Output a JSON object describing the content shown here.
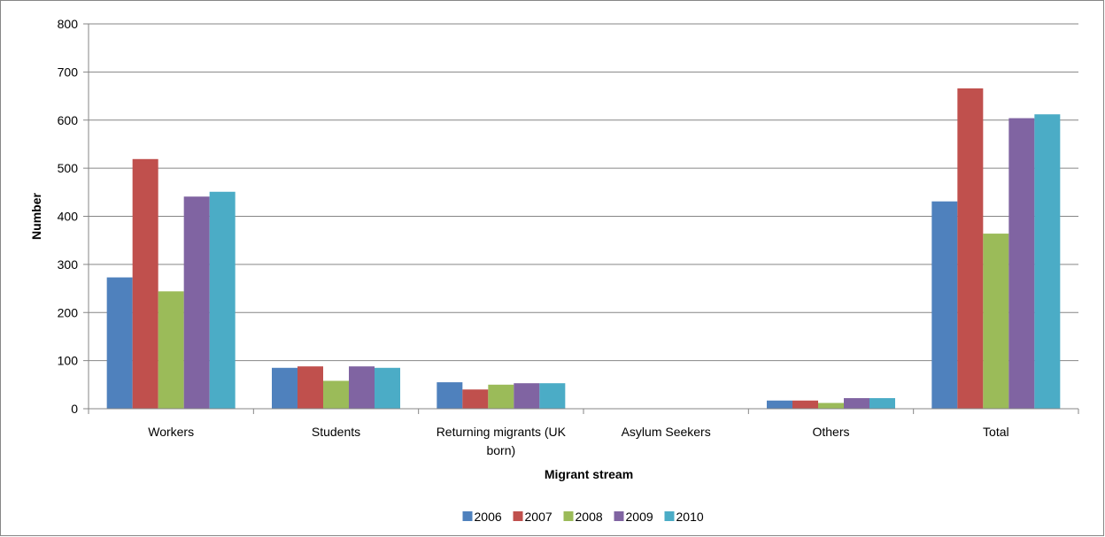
{
  "chart_data": {
    "type": "bar",
    "title": "",
    "xlabel": "Migrant stream",
    "ylabel": "Number",
    "ylim": [
      0,
      800
    ],
    "yticks": [
      0,
      100,
      200,
      300,
      400,
      500,
      600,
      700,
      800
    ],
    "grid": true,
    "legend_position": "bottom",
    "categories": [
      [
        "Workers"
      ],
      [
        "Students"
      ],
      [
        "Returning migrants  (UK",
        "born)"
      ],
      [
        "Asylum Seekers"
      ],
      [
        "Others"
      ],
      [
        "Total"
      ]
    ],
    "series": [
      {
        "name": "2006",
        "color": "#4F81BD",
        "values": [
          273,
          85,
          55,
          0,
          17,
          431
        ]
      },
      {
        "name": "2007",
        "color": "#C0504D",
        "values": [
          519,
          88,
          40,
          0,
          17,
          666
        ]
      },
      {
        "name": "2008",
        "color": "#9BBB59",
        "values": [
          244,
          58,
          50,
          0,
          12,
          364
        ]
      },
      {
        "name": "2009",
        "color": "#8064A2",
        "values": [
          441,
          88,
          53,
          0,
          22,
          604
        ]
      },
      {
        "name": "2010",
        "color": "#4BACC6",
        "values": [
          451,
          85,
          53,
          0,
          22,
          612
        ]
      }
    ]
  }
}
